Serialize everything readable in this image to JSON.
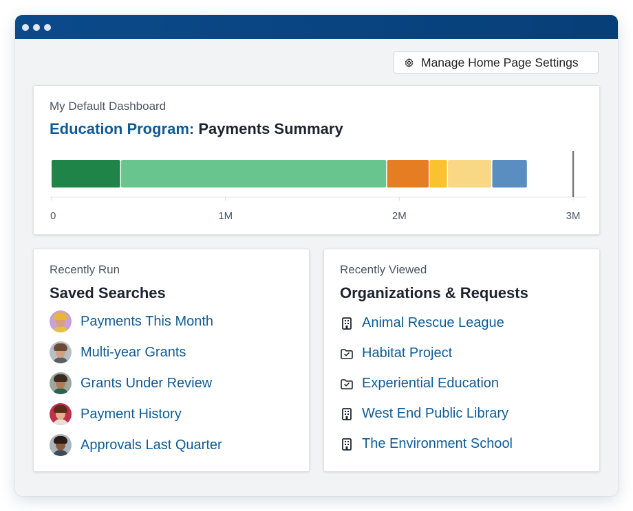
{
  "window": {
    "accent": "#0b4a8b"
  },
  "toolbar": {
    "settings_label": "Manage Home Page Settings",
    "settings_icon": "gear-icon"
  },
  "dashboard": {
    "eyebrow": "My Default Dashboard",
    "program": "Education Program:",
    "title": "Payments Summary"
  },
  "chart_data": {
    "type": "bar",
    "orientation": "horizontal-stacked",
    "xlim": [
      0,
      3000000
    ],
    "x_tick_labels": [
      "0",
      "1M",
      "2M",
      "3M"
    ],
    "x_tick_values": [
      0,
      1000000,
      2000000,
      3000000
    ],
    "segments": [
      {
        "value": 400000,
        "color": "#1f8447"
      },
      {
        "value": 1530000,
        "color": "#68c58e"
      },
      {
        "value": 245000,
        "color": "#e57e22"
      },
      {
        "value": 105000,
        "color": "#fbc22f"
      },
      {
        "value": 255000,
        "color": "#f8d785"
      },
      {
        "value": 205000,
        "color": "#5b8ec0"
      }
    ],
    "target_line": 3000000,
    "grid": false,
    "legend": "none"
  },
  "saved_searches": {
    "eyebrow": "Recently Run",
    "heading": "Saved Searches",
    "items": [
      {
        "label": "Payments This Month",
        "avatar": {
          "bg": "#c9a0d6",
          "hair": "#e6b53a",
          "face": "#d9a07a",
          "body": "#e3c23d"
        }
      },
      {
        "label": "Multi-year Grants",
        "avatar": {
          "bg": "#b7bfc6",
          "hair": "#6b4a36",
          "face": "#d2a07e",
          "body": "#5a5f66"
        }
      },
      {
        "label": "Grants Under Review",
        "avatar": {
          "bg": "#9aa8a0",
          "hair": "#3a2a1f",
          "face": "#b47a55",
          "body": "#2f5f4e"
        }
      },
      {
        "label": "Payment History",
        "avatar": {
          "bg": "#c0304a",
          "hair": "#5a2a1a",
          "face": "#e4b08a",
          "body": "#e8e0d8"
        }
      },
      {
        "label": "Approvals Last Quarter",
        "avatar": {
          "bg": "#aab4bd",
          "hair": "#2b1d14",
          "face": "#8a5a3c",
          "body": "#3d4a5a"
        }
      }
    ]
  },
  "recent": {
    "eyebrow": "Recently Viewed",
    "heading": "Organizations & Requests",
    "items": [
      {
        "label": "Animal Rescue League",
        "icon": "building-icon"
      },
      {
        "label": "Habitat Project",
        "icon": "folder-check-icon"
      },
      {
        "label": "Experiential Education",
        "icon": "folder-check-icon"
      },
      {
        "label": "West End Public Library",
        "icon": "building-icon"
      },
      {
        "label": "The Environment School",
        "icon": "building-icon"
      }
    ]
  }
}
